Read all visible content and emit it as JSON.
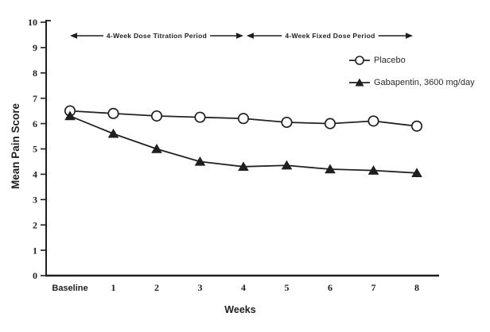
{
  "figure": {
    "background": "#ffffff",
    "ink_color": "#1f1f1f"
  },
  "chart_data": {
    "type": "line",
    "title": "",
    "xlabel": "Weeks",
    "ylabel": "Mean Pain Score",
    "x_categories": [
      "Baseline",
      "1",
      "2",
      "3",
      "4",
      "5",
      "6",
      "7",
      "8"
    ],
    "y_ticks": [
      "0",
      "1",
      "2",
      "3",
      "4",
      "5",
      "6",
      "7",
      "8",
      "9",
      "10"
    ],
    "ylim": [
      0,
      10
    ],
    "grid": false,
    "legend_position": "upper-right-inside",
    "series": [
      {
        "name": "Placebo",
        "marker": "open-circle",
        "line_color": "#1f1f1f",
        "values": [
          6.5,
          6.4,
          6.3,
          6.25,
          6.2,
          6.05,
          6.0,
          6.1,
          5.9
        ]
      },
      {
        "name": "Gabapentin, 3600 mg/day",
        "marker": "filled-triangle",
        "line_color": "#1f1f1f",
        "values": [
          6.3,
          5.6,
          5.0,
          4.5,
          4.3,
          4.35,
          4.2,
          4.15,
          4.05
        ]
      }
    ],
    "annotations": [
      {
        "label": "4-Week Dose Titration Period",
        "arrow": "double-headed",
        "x_span": [
          "Baseline",
          "4"
        ]
      },
      {
        "label": "4-Week Fixed Dose Period",
        "arrow": "double-headed",
        "x_span": [
          "4",
          "8"
        ]
      }
    ]
  }
}
